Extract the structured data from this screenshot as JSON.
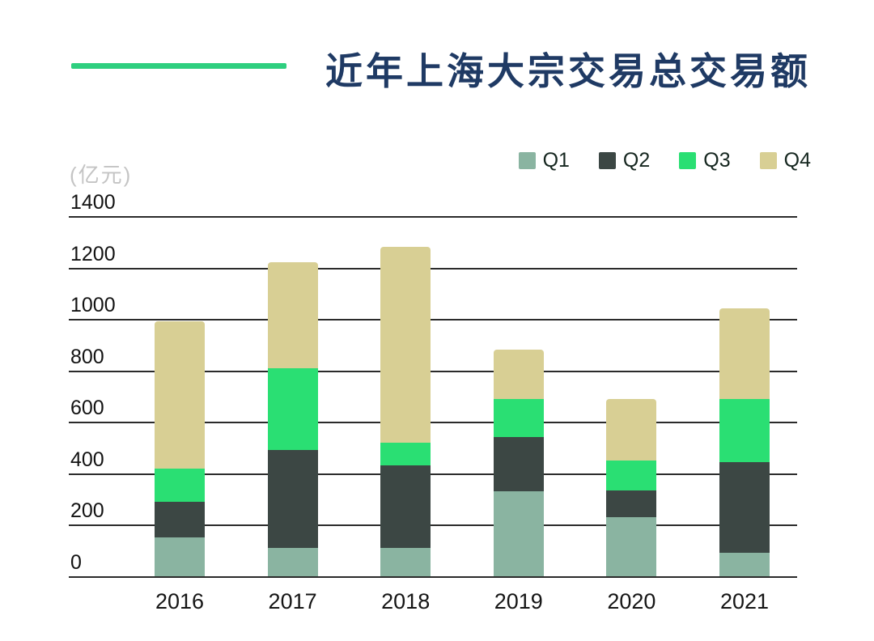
{
  "title": "近年上海大宗交易总交易额",
  "unit_label": "(亿元)",
  "legend": [
    {
      "label": "Q1",
      "color": "#8AB4A1"
    },
    {
      "label": "Q2",
      "color": "#3C4744"
    },
    {
      "label": "Q3",
      "color": "#2ADF73"
    },
    {
      "label": "Q4",
      "color": "#D8CF94"
    }
  ],
  "colors": {
    "title": "#1F3A64",
    "accent_line": "#2ECF7F",
    "gridline": "#2B2B2B",
    "unit_label": "#C4C4C4",
    "tick_label": "#121212",
    "background": "#FFFFFF"
  },
  "chart_data": {
    "type": "bar",
    "stacked": true,
    "title": "近年上海大宗交易总交易额",
    "unit": "亿元",
    "categories": [
      "2016",
      "2017",
      "2018",
      "2019",
      "2020",
      "2021"
    ],
    "series": [
      {
        "name": "Q1",
        "color": "#8AB4A1",
        "values": [
          150,
          110,
          110,
          330,
          230,
          90
        ]
      },
      {
        "name": "Q2",
        "color": "#3C4744",
        "values": [
          140,
          380,
          320,
          210,
          105,
          355
        ]
      },
      {
        "name": "Q3",
        "color": "#2ADF73",
        "values": [
          130,
          320,
          90,
          150,
          115,
          245
        ]
      },
      {
        "name": "Q4",
        "color": "#D8CF94",
        "values": [
          570,
          410,
          760,
          190,
          240,
          350
        ]
      }
    ],
    "totals": [
      990,
      1220,
      1280,
      880,
      690,
      1040
    ],
    "ylim": [
      0,
      1400
    ],
    "yticks": [
      0,
      200,
      400,
      600,
      800,
      1000,
      1200,
      1400
    ],
    "grid": true,
    "legend_position": "top-right",
    "xlabel": "",
    "ylabel": "(亿元)"
  }
}
